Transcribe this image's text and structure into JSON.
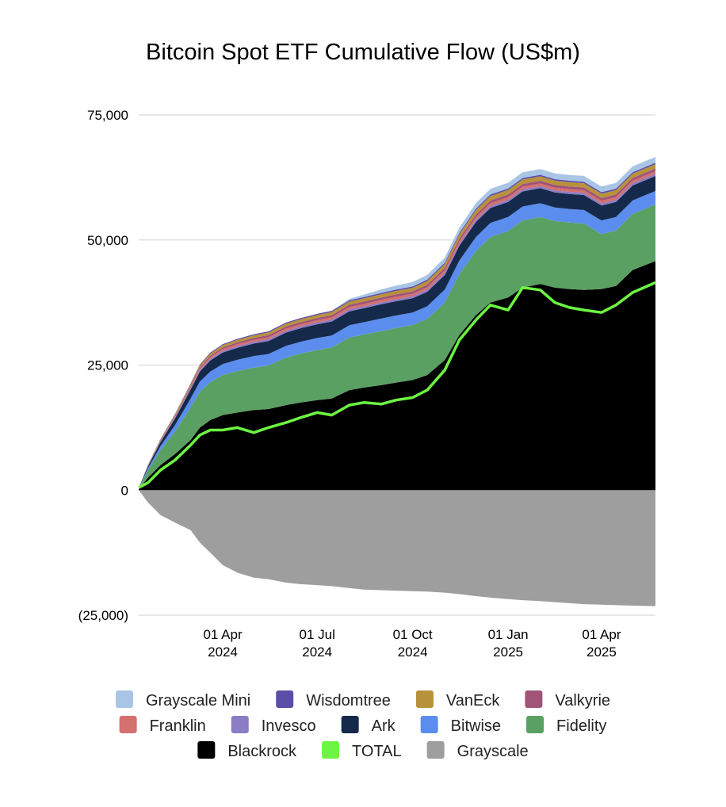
{
  "chart_data": {
    "type": "area",
    "title": "Bitcoin Spot ETF Cumulative Flow (US$m)",
    "xlabel": "",
    "ylabel": "",
    "ylim": [
      -25000,
      75000
    ],
    "yticks": [
      {
        "value": 75000,
        "label": "75,000"
      },
      {
        "value": 50000,
        "label": "50,000"
      },
      {
        "value": 25000,
        "label": "25,000"
      },
      {
        "value": 0,
        "label": "0"
      },
      {
        "value": -25000,
        "label": "(25,000)"
      }
    ],
    "xlim": [
      "2024-01-11",
      "2025-05-23"
    ],
    "xticks": [
      {
        "date": "2024-04-01",
        "label": [
          "01 Apr",
          "2024"
        ]
      },
      {
        "date": "2024-07-01",
        "label": [
          "01 Jul",
          "2024"
        ]
      },
      {
        "date": "2024-10-01",
        "label": [
          "01 Oct",
          "2024"
        ]
      },
      {
        "date": "2025-01-01",
        "label": [
          "01 Jan",
          "2025"
        ]
      },
      {
        "date": "2025-04-01",
        "label": [
          "01 Apr",
          "2025"
        ]
      }
    ],
    "grid": true,
    "legend_position": "bottom",
    "x": [
      "2024-01-11",
      "2024-01-20",
      "2024-02-01",
      "2024-02-15",
      "2024-03-01",
      "2024-03-10",
      "2024-03-20",
      "2024-04-01",
      "2024-04-15",
      "2024-05-01",
      "2024-05-15",
      "2024-06-01",
      "2024-06-15",
      "2024-07-01",
      "2024-07-15",
      "2024-08-01",
      "2024-08-15",
      "2024-09-01",
      "2024-09-15",
      "2024-10-01",
      "2024-10-15",
      "2024-11-01",
      "2024-11-15",
      "2024-12-01",
      "2024-12-15",
      "2025-01-01",
      "2025-01-15",
      "2025-02-01",
      "2025-02-15",
      "2025-03-01",
      "2025-03-15",
      "2025-04-01",
      "2025-04-15",
      "2025-05-01",
      "2025-05-23"
    ],
    "series": [
      {
        "name": "Grayscale",
        "color": "#9e9e9e",
        "kind": "negative",
        "values": [
          0,
          -2500,
          -5000,
          -6500,
          -8000,
          -10500,
          -12500,
          -15000,
          -16500,
          -17500,
          -17800,
          -18500,
          -18800,
          -19000,
          -19200,
          -19600,
          -19900,
          -20000,
          -20100,
          -20200,
          -20300,
          -20500,
          -20800,
          -21200,
          -21500,
          -21800,
          -22000,
          -22200,
          -22400,
          -22600,
          -22800,
          -22900,
          -23000,
          -23100,
          -23200
        ]
      },
      {
        "name": "Blackrock",
        "color": "#000000",
        "values": [
          200,
          2500,
          5000,
          7200,
          10000,
          12500,
          14000,
          15000,
          15500,
          16000,
          16200,
          17000,
          17500,
          18000,
          18300,
          20000,
          20500,
          21000,
          21500,
          22000,
          23000,
          26000,
          31000,
          35000,
          37500,
          38500,
          40500,
          41200,
          40500,
          40200,
          40000,
          40200,
          40800,
          44000,
          45800
        ]
      },
      {
        "name": "Fidelity",
        "color": "#5aa063",
        "values": [
          100,
          1500,
          3000,
          4500,
          6500,
          7200,
          7600,
          8000,
          8300,
          8500,
          8700,
          9500,
          9800,
          10000,
          10200,
          10500,
          10600,
          10800,
          10900,
          11000,
          11200,
          11500,
          12200,
          12800,
          13100,
          13300,
          13400,
          13400,
          13300,
          13300,
          13300,
          11000,
          11100,
          11200,
          11300
        ]
      },
      {
        "name": "Bitwise",
        "color": "#5b8def",
        "values": [
          50,
          400,
          800,
          1300,
          1800,
          2000,
          2100,
          2200,
          2250,
          2300,
          2300,
          2350,
          2350,
          2400,
          2400,
          2450,
          2450,
          2500,
          2500,
          2500,
          2550,
          2600,
          2700,
          2800,
          2800,
          2800,
          2800,
          2750,
          2700,
          2700,
          2700,
          2700,
          2700,
          2700,
          2700
        ]
      },
      {
        "name": "Ark",
        "color": "#15294a",
        "values": [
          50,
          400,
          800,
          1300,
          1800,
          2000,
          2200,
          2300,
          2400,
          2500,
          2600,
          2650,
          2700,
          2750,
          2800,
          2800,
          2800,
          2850,
          2850,
          2850,
          2900,
          2900,
          2950,
          3000,
          3000,
          3000,
          3000,
          3000,
          3000,
          3000,
          3000,
          3000,
          3000,
          3000,
          3000
        ]
      },
      {
        "name": "Invesco",
        "color": "#8b7cc6",
        "values": [
          10,
          80,
          150,
          200,
          250,
          280,
          300,
          320,
          330,
          340,
          350,
          360,
          360,
          370,
          370,
          380,
          380,
          380,
          390,
          390,
          400,
          400,
          410,
          420,
          420,
          420,
          420,
          420,
          420,
          420,
          420,
          420,
          420,
          420,
          420
        ]
      },
      {
        "name": "Franklin",
        "color": "#d4706d",
        "values": [
          10,
          60,
          120,
          180,
          250,
          300,
          330,
          360,
          380,
          400,
          420,
          430,
          440,
          450,
          460,
          470,
          480,
          490,
          500,
          500,
          510,
          520,
          530,
          540,
          540,
          540,
          540,
          540,
          540,
          540,
          540,
          540,
          540,
          540,
          540
        ]
      },
      {
        "name": "Valkyrie",
        "color": "#a05478",
        "values": [
          10,
          60,
          120,
          180,
          250,
          300,
          330,
          360,
          380,
          400,
          420,
          430,
          440,
          450,
          460,
          470,
          480,
          490,
          500,
          500,
          510,
          520,
          530,
          540,
          540,
          540,
          540,
          540,
          540,
          540,
          540,
          540,
          540,
          540,
          540
        ]
      },
      {
        "name": "VanEck",
        "color": "#b8923a",
        "values": [
          10,
          80,
          160,
          240,
          320,
          380,
          420,
          450,
          480,
          500,
          520,
          540,
          560,
          580,
          600,
          620,
          640,
          660,
          680,
          700,
          720,
          760,
          820,
          880,
          900,
          900,
          900,
          880,
          860,
          860,
          860,
          860,
          860,
          860,
          860
        ]
      },
      {
        "name": "Wisdomtree",
        "color": "#5b4ea8",
        "values": [
          5,
          30,
          60,
          100,
          140,
          170,
          190,
          200,
          210,
          220,
          225,
          230,
          235,
          240,
          245,
          250,
          255,
          260,
          265,
          270,
          275,
          280,
          290,
          300,
          300,
          300,
          300,
          300,
          300,
          300,
          300,
          300,
          300,
          300,
          300
        ]
      },
      {
        "name": "Grayscale Mini",
        "color": "#a9c5e6",
        "values": [
          0,
          0,
          0,
          0,
          0,
          0,
          0,
          0,
          0,
          0,
          0,
          0,
          0,
          0,
          0,
          300,
          500,
          700,
          800,
          900,
          950,
          1000,
          1050,
          1100,
          1120,
          1150,
          1150,
          1150,
          1150,
          1150,
          1150,
          1150,
          1150,
          1150,
          1150
        ]
      },
      {
        "name": "TOTAL",
        "color": "#6cf542",
        "kind": "line",
        "values": [
          500,
          1500,
          4000,
          6000,
          9000,
          11000,
          12000,
          12000,
          12500,
          11500,
          12500,
          13500,
          14500,
          15500,
          15000,
          17000,
          17500,
          17200,
          18000,
          18500,
          20000,
          24000,
          30000,
          34000,
          37000,
          36000,
          40500,
          40000,
          37500,
          36500,
          36000,
          35500,
          37000,
          39500,
          41500
        ]
      }
    ],
    "legend_rows": [
      [
        "Grayscale Mini",
        "Wisdomtree",
        "VanEck",
        "Valkyrie"
      ],
      [
        "Franklin",
        "Invesco",
        "Ark",
        "Bitwise",
        "Fidelity"
      ],
      [
        "Blackrock",
        "TOTAL",
        "Grayscale"
      ]
    ]
  }
}
